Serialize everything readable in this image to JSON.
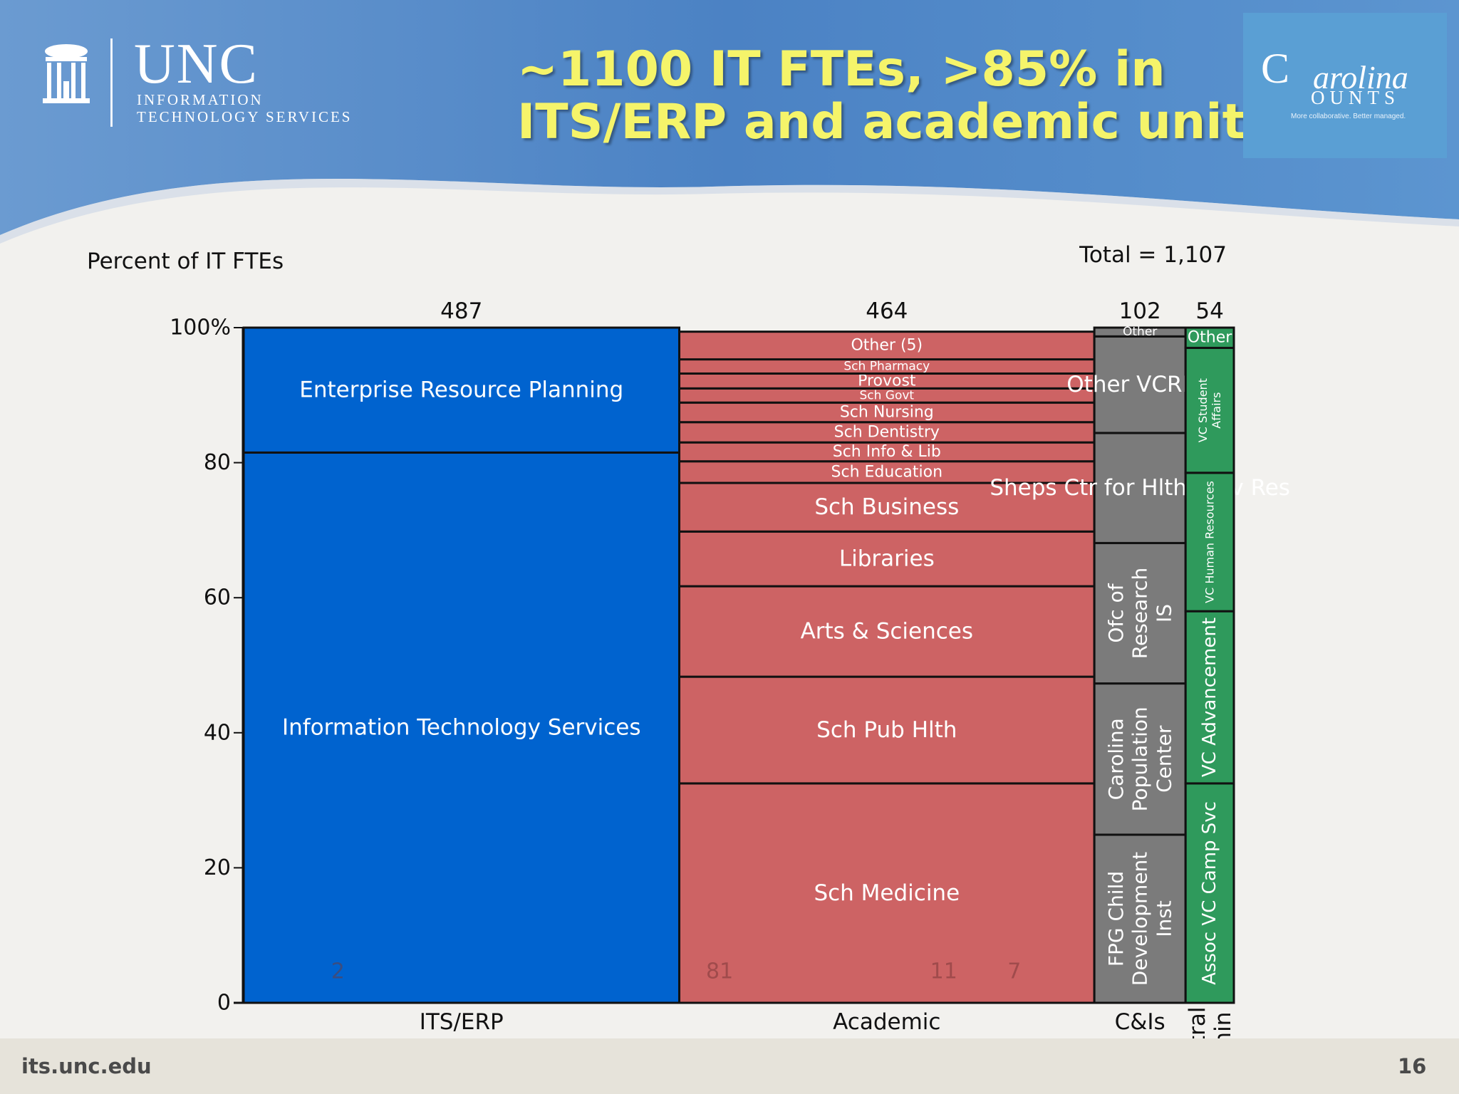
{
  "header": {
    "logo_word": "UNC",
    "logo_line1": "INFORMATION",
    "logo_line2": "TECHNOLOGY SERVICES",
    "title_line1": "~1100 IT FTEs, >85% in",
    "title_line2": "ITS/ERP and academic units",
    "badge_word1": "C",
    "badge_word2": "arolina",
    "badge_word3": "OUNTS",
    "badge_tagline": "More collaborative. Better managed."
  },
  "footer": {
    "url": "its.unc.edu",
    "page_number": "16"
  },
  "colors": {
    "its": "#0063cf",
    "academic": "#cd6364",
    "cis": "#7b7b7b",
    "admin": "#2f9a5c",
    "header_blue": "#4f86c6",
    "title_yellow": "#f5f46a"
  },
  "chart_data": {
    "type": "marimekko",
    "ylabel": "Percent of IT FTEs",
    "total_label": "Total = 1,107",
    "ylim": [
      0,
      100
    ],
    "y_ticks": [
      "0",
      "20",
      "40",
      "60",
      "80",
      "100%"
    ],
    "y_tick_values": [
      0,
      20,
      40,
      60,
      80,
      100
    ],
    "columns": [
      {
        "name": "ITS/ERP",
        "total": "487",
        "width_value": 487,
        "color_key": "its",
        "segments": [
          {
            "label": "Information Technology Services",
            "pct": 81.5
          },
          {
            "label": "Enterprise Resource Planning",
            "pct": 18.5
          }
        ],
        "inner_numbers": [
          {
            "text": "2",
            "at": 0.2
          }
        ]
      },
      {
        "name": "Academic",
        "total": "464",
        "width_value": 464,
        "color_key": "academic",
        "segments": [
          {
            "label": "Sch Medicine",
            "pct": 32.5
          },
          {
            "label": "Sch Pub Hlth",
            "pct": 15.8
          },
          {
            "label": "Arts & Sciences",
            "pct": 13.4
          },
          {
            "label": "Libraries",
            "pct": 8.1
          },
          {
            "label": "Sch Business",
            "pct": 7.2
          },
          {
            "label": "Sch Education",
            "pct": 3.2
          },
          {
            "label": "Sch Info & Lib",
            "pct": 2.8
          },
          {
            "label": "Sch Dentistry",
            "pct": 3.0
          },
          {
            "label": "Sch Nursing",
            "pct": 2.9
          },
          {
            "label": "Sch Govt",
            "pct": 2.1
          },
          {
            "label": "Provost",
            "pct": 2.2
          },
          {
            "label": "Sch Pharmacy",
            "pct": 2.1
          },
          {
            "label": "Other (5)",
            "pct": 4.1
          }
        ],
        "inner_numbers": [
          {
            "text": "81",
            "at": 0.08
          },
          {
            "text": "11",
            "at": 0.62
          },
          {
            "text": "7",
            "at": 0.79
          }
        ]
      },
      {
        "name": "C&Is",
        "total": "102",
        "width_value": 102,
        "color_key": "cis",
        "segments": [
          {
            "label": "FPG Child Development Inst",
            "pct": 24.9,
            "rotated": true
          },
          {
            "label": "Carolina Population Center",
            "pct": 22.4,
            "rotated": true
          },
          {
            "label": "Ofc of Research IS",
            "pct": 20.8,
            "rotated": true
          },
          {
            "label": "Sheps Ctr for Hlth Serv Res",
            "pct": 16.3
          },
          {
            "label": "Other VCRED",
            "pct": 14.3
          },
          {
            "label": "Other",
            "pct": 1.3
          }
        ],
        "inner_numbers": []
      },
      {
        "name": "Central Admin",
        "total": "54",
        "width_value": 54,
        "color_key": "admin",
        "segments": [
          {
            "label": "Assoc VC Camp Svc",
            "pct": 32.5,
            "rotated": true
          },
          {
            "label": "VC Advancement",
            "pct": 25.5,
            "rotated": true
          },
          {
            "label": "VC Human Resources",
            "pct": 20.5,
            "rotated": true
          },
          {
            "label": "VC Student Affairs",
            "pct": 18.5,
            "rotated": true
          },
          {
            "label": "Other",
            "pct": 3.0
          }
        ],
        "inner_numbers": []
      }
    ]
  }
}
